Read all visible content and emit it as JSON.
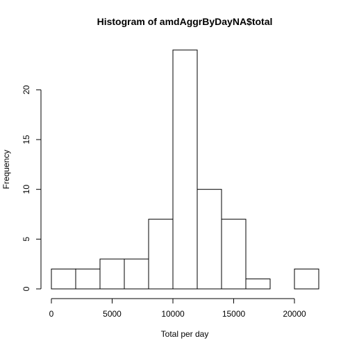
{
  "chart_data": {
    "type": "bar",
    "title": "Histogram of amdAggrByDayNA$total",
    "xlabel": "Total per day",
    "ylabel": "Frequency",
    "bin_edges": [
      0,
      2000,
      4000,
      6000,
      8000,
      10000,
      12000,
      14000,
      16000,
      18000,
      20000,
      22000
    ],
    "values": [
      2,
      2,
      3,
      3,
      7,
      24,
      10,
      7,
      1,
      0,
      2
    ],
    "xlim": [
      0,
      22000
    ],
    "ylim": [
      0,
      24
    ],
    "xticks": [
      0,
      5000,
      10000,
      15000,
      20000
    ],
    "xtick_labels": [
      "0",
      "5000",
      "10000",
      "15000",
      "20000"
    ],
    "yticks": [
      0,
      5,
      10,
      15,
      20
    ],
    "ytick_labels": [
      "0",
      "5",
      "10",
      "15",
      "20"
    ],
    "grid": false,
    "legend": "none"
  }
}
